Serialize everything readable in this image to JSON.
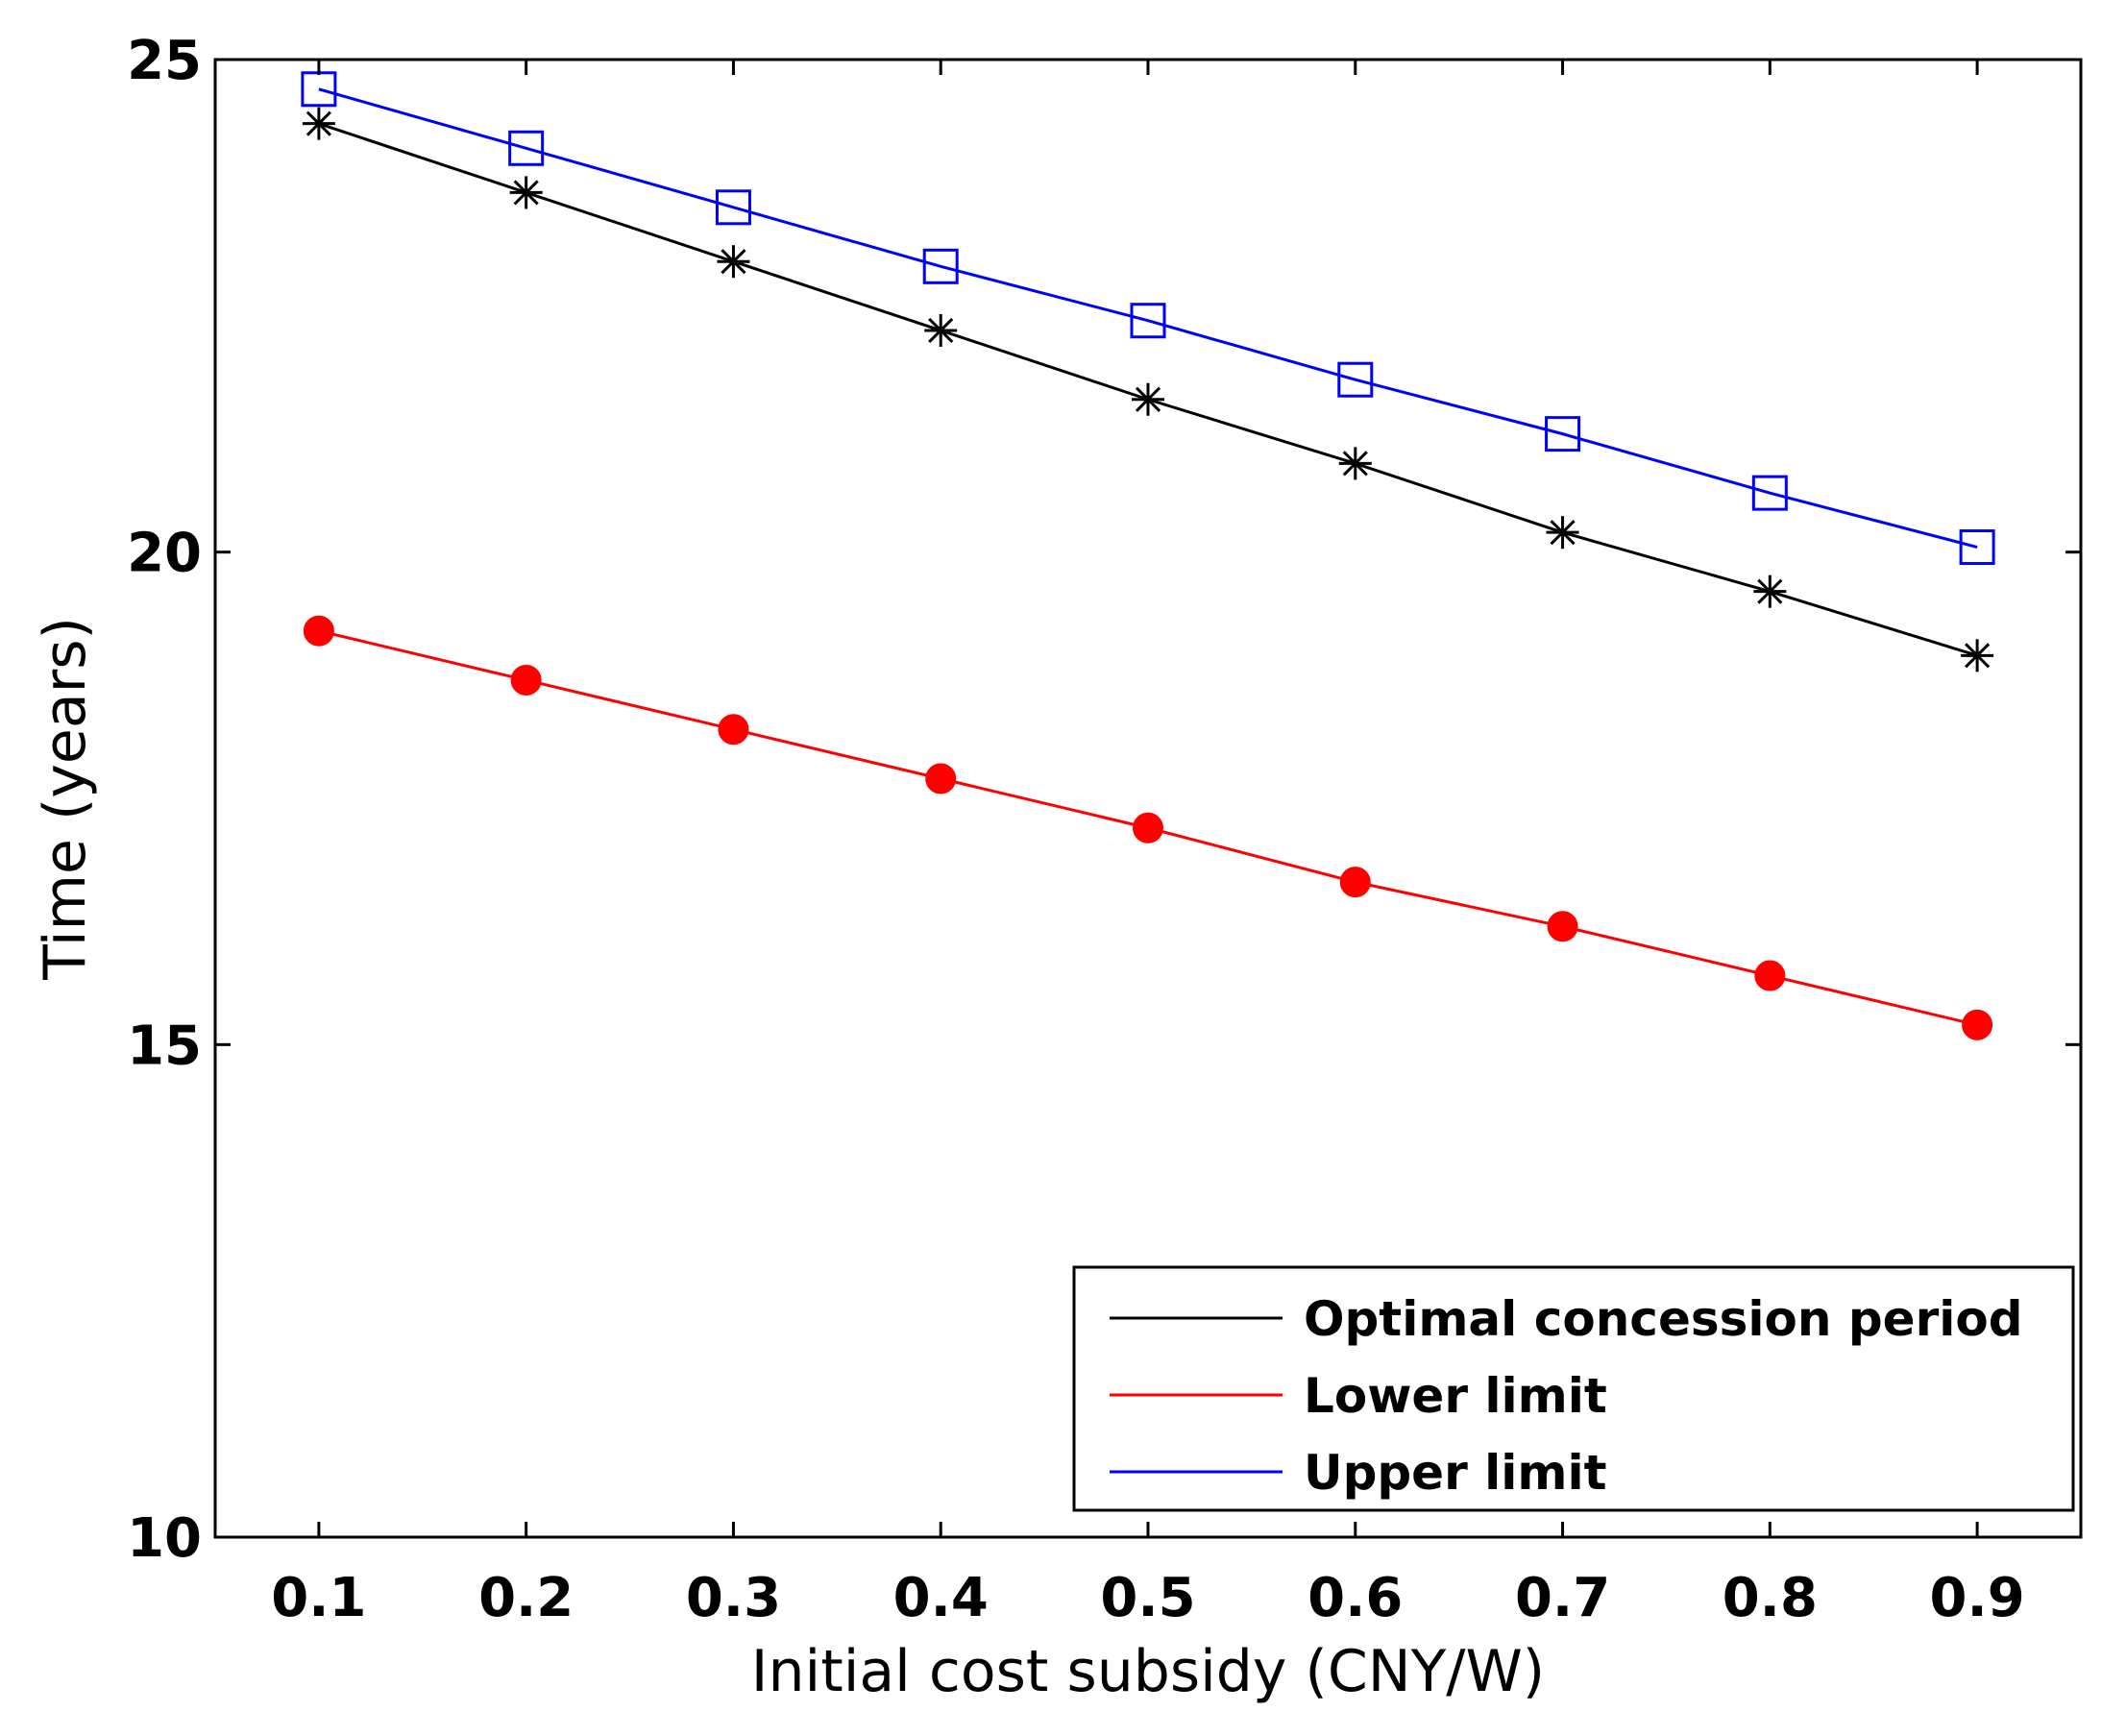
{
  "chart_data": {
    "type": "line",
    "title": "",
    "xlabel": "Initial cost subsidy (CNY/W)",
    "ylabel": "Time (years)",
    "xlim": [
      0.05,
      0.95
    ],
    "ylim": [
      10,
      25
    ],
    "xticks": [
      0.1,
      0.2,
      0.3,
      0.4,
      0.5,
      0.6,
      0.7,
      0.8,
      0.9
    ],
    "xtick_labels": [
      "0.1",
      "0.2",
      "0.3",
      "0.4",
      "0.5",
      "0.6",
      "0.7",
      "0.8",
      "0.9"
    ],
    "yticks": [
      10,
      15,
      20,
      25
    ],
    "ytick_labels": [
      "10",
      "15",
      "20",
      "25"
    ],
    "grid": false,
    "legend_position": "bottom-right",
    "x": [
      0.1,
      0.2,
      0.3,
      0.4,
      0.5,
      0.6,
      0.7,
      0.8,
      0.9
    ],
    "series": [
      {
        "name": "Optimal concession period",
        "color": "#000000",
        "marker": "asterisk",
        "values": [
          24.35,
          23.65,
          22.95,
          22.25,
          21.55,
          20.9,
          20.2,
          19.6,
          18.95
        ]
      },
      {
        "name": "Lower limit",
        "color": "#ff0000",
        "marker": "filled-circle",
        "values": [
          19.2,
          18.7,
          18.2,
          17.7,
          17.2,
          16.65,
          16.2,
          15.7,
          15.2
        ]
      },
      {
        "name": "Upper limit",
        "color": "#0000ff",
        "marker": "open-square",
        "values": [
          24.7,
          24.1,
          23.5,
          22.9,
          22.35,
          21.75,
          21.2,
          20.6,
          20.05
        ]
      }
    ]
  }
}
